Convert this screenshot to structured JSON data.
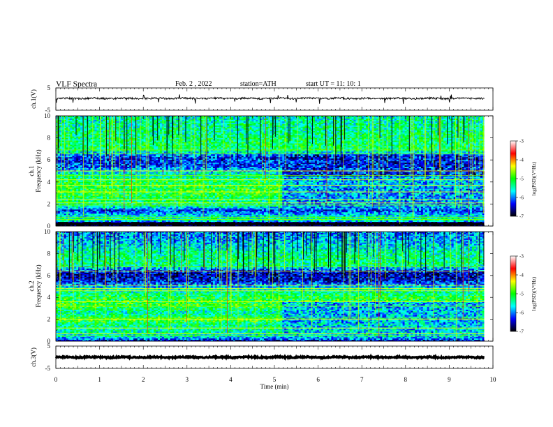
{
  "header": {
    "title": "VLF  Spectra",
    "date": "Feb. 2  , 2022",
    "station": "station=ATH",
    "start_ut": "start  UT  =    11: 10: 1"
  },
  "chart_data": [
    {
      "type": "line",
      "panel": "ch1-waveform",
      "ylabel": "ch.1(V)",
      "ylim": [
        -5,
        5
      ],
      "yticks": [
        "5",
        "-5"
      ],
      "xlim": [
        0,
        10
      ],
      "trace_color": "#000000",
      "mean_level_v": 0.3,
      "noise_amplitude_v": 0.4,
      "spike_amplitude_v": 2.2
    },
    {
      "type": "heatmap",
      "panel": "ch1-spectrogram",
      "ylabel": "Frequency  (kHz)",
      "channel_label": "ch.1",
      "ylim": [
        0,
        10
      ],
      "yticks": [
        "10",
        "8",
        "6",
        "4",
        "2",
        "0"
      ],
      "xlim": [
        0,
        9.8
      ],
      "time_end_min": 9.8,
      "colorbar": {
        "label": "log(PSD)(V²/Hz)",
        "range": [
          -7,
          -3
        ],
        "ticks": [
          "-3",
          "-4",
          "-5",
          "-6",
          "-7"
        ],
        "colors": [
          "#000000",
          "#0000ff",
          "#00ffff",
          "#00ff00",
          "#ffff00",
          "#ff0000",
          "#ffffff"
        ]
      },
      "band_levels": [
        {
          "f": 0.0,
          "v": -6.9
        },
        {
          "f": 0.3,
          "v": -6.9
        },
        {
          "f": 0.5,
          "v": -5.3
        },
        {
          "f": 1.0,
          "v": -5.7
        },
        {
          "f": 1.4,
          "v": -6.3
        },
        {
          "f": 1.8,
          "v": -5.4
        },
        {
          "f": 2.3,
          "v": -5.3
        },
        {
          "f": 3.0,
          "v": -5.0
        },
        {
          "f": 4.0,
          "v": -5.1
        },
        {
          "f": 4.8,
          "v": -5.6
        },
        {
          "f": 5.5,
          "v": -6.2
        },
        {
          "f": 6.2,
          "v": -6.3
        },
        {
          "f": 7.0,
          "v": -5.2
        },
        {
          "f": 8.0,
          "v": -5.3
        },
        {
          "f": 9.0,
          "v": -5.4
        },
        {
          "f": 10.0,
          "v": -5.5
        }
      ],
      "late_time_min": 5.2,
      "late_band_levels": [
        {
          "f": 2.5,
          "v": -5.9
        },
        {
          "f": 4.5,
          "v": -5.8
        },
        {
          "f": 5.5,
          "v": -6.3
        }
      ],
      "lines_khz": [
        0.2,
        0.6,
        0.8,
        1.9,
        2.1,
        2.4,
        3.1,
        3.7,
        4.2,
        4.6,
        5.0,
        6.6,
        6.9
      ],
      "sferic_count": 120
    },
    {
      "type": "heatmap",
      "panel": "ch2-spectrogram",
      "ylabel": "Frequency  (kHz)",
      "channel_label": "ch.2",
      "ylim": [
        0,
        10
      ],
      "yticks": [
        "10",
        "8",
        "6",
        "4",
        "2",
        "0"
      ],
      "xlim": [
        0,
        9.8
      ],
      "time_end_min": 9.8,
      "colorbar": {
        "label": "log(PSD)(V²/Hz)",
        "range": [
          -7,
          -3
        ],
        "ticks": [
          "-3",
          "-4",
          "-5",
          "-6",
          "-7"
        ],
        "colors": [
          "#000000",
          "#0000ff",
          "#00ffff",
          "#00ff00",
          "#ffff00",
          "#ff0000",
          "#ffffff"
        ]
      },
      "band_levels": [
        {
          "f": 0.0,
          "v": -6.5
        },
        {
          "f": 0.4,
          "v": -5.6
        },
        {
          "f": 1.0,
          "v": -5.4
        },
        {
          "f": 1.6,
          "v": -5.3
        },
        {
          "f": 2.0,
          "v": -4.9
        },
        {
          "f": 2.6,
          "v": -5.5
        },
        {
          "f": 3.2,
          "v": -5.0
        },
        {
          "f": 4.0,
          "v": -5.1
        },
        {
          "f": 4.8,
          "v": -5.6
        },
        {
          "f": 5.5,
          "v": -6.4
        },
        {
          "f": 6.2,
          "v": -6.5
        },
        {
          "f": 7.0,
          "v": -5.3
        },
        {
          "f": 8.0,
          "v": -5.4
        },
        {
          "f": 9.0,
          "v": -5.8
        },
        {
          "f": 10.0,
          "v": -6.0
        }
      ],
      "late_time_min": 5.2,
      "late_band_levels": [
        {
          "f": 0.8,
          "v": -5.7
        },
        {
          "f": 2.6,
          "v": -5.8
        }
      ],
      "lines_khz": [
        0.5,
        0.7,
        1.2,
        2.0,
        2.1,
        3.2,
        3.6,
        4.6,
        4.8,
        5.1,
        6.4,
        6.8
      ],
      "sferic_count": 130
    },
    {
      "type": "line",
      "panel": "ch3-waveform",
      "ylabel": "ch.3(V)",
      "ylim": [
        -5,
        5
      ],
      "yticks": [
        "5",
        "-5"
      ],
      "xlim": [
        0,
        10
      ],
      "trace_color": "#000000",
      "mean_level_v": 0.0,
      "noise_amplitude_v": 0.3,
      "spike_amplitude_v": 0.0
    }
  ],
  "x_axis": {
    "label": "Time  (min)",
    "range": [
      0,
      10
    ],
    "ticks": [
      "0",
      "1",
      "2",
      "3",
      "4",
      "5",
      "6",
      "7",
      "8",
      "9",
      "10"
    ]
  }
}
